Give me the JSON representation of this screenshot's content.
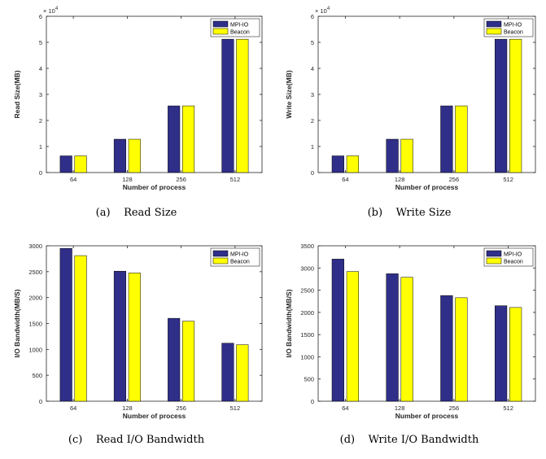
{
  "chart_data": [
    {
      "type": "bar",
      "caption_tag": "(a)",
      "caption": "Read Size",
      "xlabel": "Number of process",
      "ylabel": "Read Size(MB)",
      "categories": [
        "64",
        "128",
        "256",
        "512"
      ],
      "ylim": [
        0,
        60000
      ],
      "yticks": [
        0,
        10000,
        20000,
        30000,
        40000,
        50000,
        60000
      ],
      "ytick_labels": [
        "0",
        "1",
        "2",
        "3",
        "4",
        "5",
        "6"
      ],
      "y_exponent_base": "× 10",
      "y_exponent_power": "4",
      "legend_position": "top-right",
      "grid": false,
      "series": [
        {
          "name": "MPI-IO",
          "color": "#2f2f8a",
          "values": [
            6400,
            12800,
            25600,
            51200
          ]
        },
        {
          "name": "Beacon",
          "color": "#ffff00",
          "values": [
            6400,
            12800,
            25600,
            51200
          ]
        }
      ]
    },
    {
      "type": "bar",
      "caption_tag": "(b)",
      "caption": "Write Size",
      "xlabel": "Number of process",
      "ylabel": "Write Size(MB)",
      "categories": [
        "64",
        "128",
        "256",
        "512"
      ],
      "ylim": [
        0,
        60000
      ],
      "yticks": [
        0,
        10000,
        20000,
        30000,
        40000,
        50000,
        60000
      ],
      "ytick_labels": [
        "0",
        "1",
        "2",
        "3",
        "4",
        "5",
        "6"
      ],
      "y_exponent_base": "× 10",
      "y_exponent_power": "4",
      "legend_position": "top-right",
      "grid": false,
      "series": [
        {
          "name": "MPI-IO",
          "color": "#2f2f8a",
          "values": [
            6400,
            12800,
            25600,
            51200
          ]
        },
        {
          "name": "Beacon",
          "color": "#ffff00",
          "values": [
            6400,
            12800,
            25600,
            51200
          ]
        }
      ]
    },
    {
      "type": "bar",
      "caption_tag": "(c)",
      "caption": "Read I/O Bandwidth",
      "xlabel": "Number of process",
      "ylabel": "I/O Bandwidth(MB/S)",
      "categories": [
        "64",
        "128",
        "256",
        "512"
      ],
      "ylim": [
        0,
        3000
      ],
      "yticks": [
        0,
        500,
        1000,
        1500,
        2000,
        2500,
        3000
      ],
      "ytick_labels": [
        "0",
        "500",
        "1000",
        "1500",
        "2000",
        "2500",
        "3000"
      ],
      "legend_position": "top-right",
      "grid": false,
      "series": [
        {
          "name": "MPI-IO",
          "color": "#2f2f8a",
          "values": [
            2950,
            2510,
            1600,
            1120
          ]
        },
        {
          "name": "Beacon",
          "color": "#ffff00",
          "values": [
            2810,
            2475,
            1545,
            1090
          ]
        }
      ]
    },
    {
      "type": "bar",
      "caption_tag": "(d)",
      "caption": "Write I/O Bandwidth",
      "xlabel": "Number of process",
      "ylabel": "I/O Bandwidth(MB/S)",
      "categories": [
        "64",
        "128",
        "256",
        "512"
      ],
      "ylim": [
        0,
        3500
      ],
      "yticks": [
        0,
        500,
        1000,
        1500,
        2000,
        2500,
        3000,
        3500
      ],
      "ytick_labels": [
        "0",
        "500",
        "1000",
        "1500",
        "2000",
        "2500",
        "3000",
        "3500"
      ],
      "legend_position": "top-right",
      "grid": false,
      "series": [
        {
          "name": "MPI-IO",
          "color": "#2f2f8a",
          "values": [
            3200,
            2870,
            2380,
            2150
          ]
        },
        {
          "name": "Beacon",
          "color": "#ffff00",
          "values": [
            2920,
            2790,
            2330,
            2110
          ]
        }
      ]
    }
  ]
}
